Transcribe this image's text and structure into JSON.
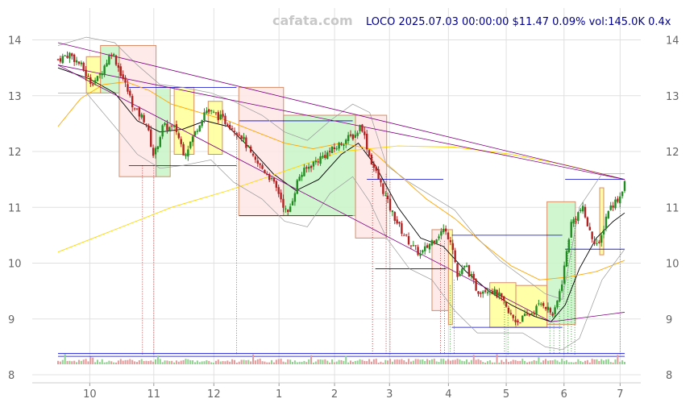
{
  "chart_data": {
    "type": "candlestick",
    "title": "LOCO 2025.07.03 00:00:00 $11.47 0.09% vol:145.0K 0.4x",
    "watermark": "cafata.com",
    "ylim": [
      8,
      14.6
    ],
    "xlim": [
      0,
      100
    ],
    "y_ticks": [
      8,
      9,
      10,
      11,
      12,
      13,
      14
    ],
    "x_ticks": [
      {
        "label": "10",
        "x": 5.6
      },
      {
        "label": "11",
        "x": 16.9
      },
      {
        "label": "12",
        "x": 27.5
      },
      {
        "label": "1",
        "x": 39.0
      },
      {
        "label": "2",
        "x": 48.8
      },
      {
        "label": "3",
        "x": 58.5
      },
      {
        "label": "4",
        "x": 68.9
      },
      {
        "label": "5",
        "x": 79.1
      },
      {
        "label": "6",
        "x": 89.3
      },
      {
        "label": "7",
        "x": 99.2
      }
    ],
    "grid": true,
    "price_path": [
      [
        0,
        13.65
      ],
      [
        2,
        13.75
      ],
      [
        4,
        13.55
      ],
      [
        5.6,
        13.25
      ],
      [
        7,
        13.3
      ],
      [
        9.5,
        13.8
      ],
      [
        11.5,
        13.3
      ],
      [
        13.5,
        12.75
      ],
      [
        15.5,
        12.55
      ],
      [
        16.9,
        11.9
      ],
      [
        18.5,
        12.45
      ],
      [
        20.8,
        12.4
      ],
      [
        22.3,
        11.95
      ],
      [
        24,
        12.3
      ],
      [
        26,
        12.75
      ],
      [
        28,
        12.65
      ],
      [
        30,
        12.5
      ],
      [
        32.3,
        12.3
      ],
      [
        34.5,
        11.85
      ],
      [
        37,
        11.6
      ],
      [
        39,
        11.25
      ],
      [
        40.5,
        10.85
      ],
      [
        42.5,
        11.55
      ],
      [
        44.5,
        11.75
      ],
      [
        46.5,
        11.9
      ],
      [
        48.8,
        12.05
      ],
      [
        50.5,
        12.2
      ],
      [
        52.5,
        12.3
      ],
      [
        53.5,
        12.5
      ],
      [
        55,
        11.9
      ],
      [
        57,
        11.4
      ],
      [
        58.5,
        11.0
      ],
      [
        60.5,
        10.6
      ],
      [
        62.5,
        10.3
      ],
      [
        64,
        10.15
      ],
      [
        66,
        10.4
      ],
      [
        68,
        10.6
      ],
      [
        69.5,
        10.4
      ],
      [
        70.5,
        9.75
      ],
      [
        72,
        9.95
      ],
      [
        74,
        9.5
      ],
      [
        76,
        9.55
      ],
      [
        78,
        9.4
      ],
      [
        79.5,
        9.1
      ],
      [
        81,
        8.95
      ],
      [
        83.5,
        9.1
      ],
      [
        85.5,
        9.3
      ],
      [
        87.5,
        9.05
      ],
      [
        89,
        9.7
      ],
      [
        90.5,
        10.7
      ],
      [
        92.5,
        11.0
      ],
      [
        94,
        10.5
      ],
      [
        95.5,
        10.3
      ],
      [
        97,
        10.95
      ],
      [
        99.2,
        11.2
      ],
      [
        100,
        11.47
      ]
    ],
    "series": [
      {
        "kind": "sma_short",
        "color": "#000000",
        "points": [
          [
            0,
            13.5
          ],
          [
            5.6,
            13.3
          ],
          [
            10,
            13.05
          ],
          [
            14,
            12.55
          ],
          [
            18,
            12.35
          ],
          [
            22,
            12.4
          ],
          [
            26,
            12.55
          ],
          [
            30,
            12.45
          ],
          [
            34,
            12.05
          ],
          [
            38,
            11.6
          ],
          [
            42,
            11.3
          ],
          [
            46,
            11.5
          ],
          [
            50,
            11.95
          ],
          [
            53,
            12.15
          ],
          [
            56,
            11.75
          ],
          [
            60,
            11.0
          ],
          [
            64,
            10.45
          ],
          [
            68,
            10.3
          ],
          [
            72,
            9.85
          ],
          [
            76,
            9.5
          ],
          [
            80,
            9.25
          ],
          [
            84,
            9.05
          ],
          [
            87,
            8.95
          ],
          [
            89.5,
            9.25
          ],
          [
            92,
            9.9
          ],
          [
            95,
            10.45
          ],
          [
            98,
            10.75
          ],
          [
            100,
            10.9
          ]
        ]
      },
      {
        "kind": "sma_mid",
        "color": "#ffa500",
        "points": [
          [
            0,
            12.45
          ],
          [
            4,
            12.95
          ],
          [
            8,
            13.2
          ],
          [
            12,
            13.25
          ],
          [
            16,
            13.1
          ],
          [
            20,
            12.85
          ],
          [
            25,
            12.7
          ],
          [
            30,
            12.55
          ],
          [
            35,
            12.35
          ],
          [
            40,
            12.15
          ],
          [
            45,
            12.05
          ],
          [
            50,
            12.15
          ],
          [
            55,
            12.05
          ],
          [
            60,
            11.6
          ],
          [
            65,
            11.15
          ],
          [
            70,
            10.8
          ],
          [
            75,
            10.35
          ],
          [
            80,
            9.95
          ],
          [
            85,
            9.7
          ],
          [
            90,
            9.75
          ],
          [
            95,
            9.85
          ],
          [
            100,
            10.05
          ]
        ]
      },
      {
        "kind": "sma_long",
        "color": "#ffd700",
        "points": [
          [
            0,
            10.2
          ],
          [
            10,
            10.6
          ],
          [
            20,
            11.0
          ],
          [
            30,
            11.3
          ],
          [
            40,
            11.65
          ],
          [
            50,
            12.0
          ],
          [
            60,
            12.1
          ],
          [
            70,
            12.08
          ],
          [
            80,
            11.95
          ],
          [
            90,
            11.75
          ],
          [
            100,
            11.5
          ]
        ]
      },
      {
        "kind": "bb_upper",
        "color": "#999999",
        "points": [
          [
            0,
            13.9
          ],
          [
            5,
            14.05
          ],
          [
            10,
            13.95
          ],
          [
            14,
            13.55
          ],
          [
            18,
            13.2
          ],
          [
            22,
            13.15
          ],
          [
            27,
            13.05
          ],
          [
            31,
            12.9
          ],
          [
            36,
            12.65
          ],
          [
            40,
            12.35
          ],
          [
            44,
            12.2
          ],
          [
            48,
            12.55
          ],
          [
            52,
            12.85
          ],
          [
            55,
            12.7
          ],
          [
            58,
            11.75
          ],
          [
            62,
            11.45
          ],
          [
            66,
            11.2
          ],
          [
            70,
            10.95
          ],
          [
            74,
            10.45
          ],
          [
            78,
            10.05
          ],
          [
            82,
            9.75
          ],
          [
            86,
            9.45
          ],
          [
            89,
            9.35
          ],
          [
            92,
            11.0
          ],
          [
            96,
            11.6
          ],
          [
            100,
            11.6
          ]
        ]
      },
      {
        "kind": "bb_lower",
        "color": "#999999",
        "points": [
          [
            0,
            13.05
          ],
          [
            5,
            13.05
          ],
          [
            10,
            12.45
          ],
          [
            14,
            11.95
          ],
          [
            18,
            11.7
          ],
          [
            22,
            11.75
          ],
          [
            27,
            11.85
          ],
          [
            31,
            11.45
          ],
          [
            36,
            11.15
          ],
          [
            40,
            10.75
          ],
          [
            44,
            10.65
          ],
          [
            48,
            11.25
          ],
          [
            52,
            11.55
          ],
          [
            55,
            11.1
          ],
          [
            58,
            10.45
          ],
          [
            62,
            9.9
          ],
          [
            66,
            9.7
          ],
          [
            70,
            9.15
          ],
          [
            74,
            8.75
          ],
          [
            78,
            8.75
          ],
          [
            82,
            8.75
          ],
          [
            86,
            8.5
          ],
          [
            89,
            8.45
          ],
          [
            92,
            8.65
          ],
          [
            96,
            9.7
          ],
          [
            100,
            10.25
          ]
        ]
      }
    ],
    "trendlines": [
      {
        "color": "#800080",
        "from": [
          0,
          13.95
        ],
        "to": [
          100,
          11.5
        ]
      },
      {
        "color": "#800080",
        "from": [
          0,
          13.55
        ],
        "to": [
          100,
          11.5
        ]
      },
      {
        "color": "#800080",
        "from": [
          0,
          13.55
        ],
        "to": [
          87,
          8.95
        ]
      },
      {
        "color": "#800080",
        "from": [
          87,
          8.95
        ],
        "to": [
          100,
          9.12
        ]
      }
    ],
    "boxes": [
      {
        "x0": 5.0,
        "x1": 7.5,
        "y0": 13.05,
        "y1": 13.7,
        "kind": "yellow"
      },
      {
        "x0": 7.5,
        "x1": 10.8,
        "y0": 13.05,
        "y1": 13.9,
        "kind": "green"
      },
      {
        "x0": 10.8,
        "x1": 17.3,
        "y0": 11.55,
        "y1": 13.9,
        "kind": "red"
      },
      {
        "x0": 17.3,
        "x1": 19.8,
        "y0": 11.55,
        "y1": 13.15,
        "kind": "green"
      },
      {
        "x0": 20.5,
        "x1": 24.0,
        "y0": 11.95,
        "y1": 13.15,
        "kind": "yellow"
      },
      {
        "x0": 26.5,
        "x1": 29.0,
        "y0": 11.95,
        "y1": 12.9,
        "kind": "yellow"
      },
      {
        "x0": 31.9,
        "x1": 39.8,
        "y0": 10.85,
        "y1": 13.15,
        "kind": "red"
      },
      {
        "x0": 39.8,
        "x1": 52.5,
        "y0": 10.85,
        "y1": 12.65,
        "kind": "green"
      },
      {
        "x0": 52.5,
        "x1": 58.0,
        "y0": 10.45,
        "y1": 12.65,
        "kind": "red"
      },
      {
        "x0": 66.0,
        "x1": 68.9,
        "y0": 9.15,
        "y1": 10.6,
        "kind": "red"
      },
      {
        "x0": 68.9,
        "x1": 69.6,
        "y0": 8.9,
        "y1": 10.6,
        "kind": "yellow"
      },
      {
        "x0": 76.2,
        "x1": 80.8,
        "y0": 8.85,
        "y1": 9.65,
        "kind": "yellow"
      },
      {
        "x0": 80.8,
        "x1": 86.3,
        "y0": 8.85,
        "y1": 9.6,
        "kind": "yellow"
      },
      {
        "x0": 86.3,
        "x1": 91.3,
        "y0": 8.9,
        "y1": 11.1,
        "kind": "green"
      },
      {
        "x0": 95.6,
        "x1": 96.3,
        "y0": 10.15,
        "y1": 11.35,
        "kind": "yellow"
      }
    ],
    "levels": [
      {
        "y": 13.15,
        "x0": 12.5,
        "x1": 31.5
      },
      {
        "y": 11.75,
        "x0": 12.5,
        "x1": 31.5
      },
      {
        "y": 12.55,
        "x0": 32.0,
        "x1": 52.0
      },
      {
        "y": 10.85,
        "x0": 32.0,
        "x1": 52.0
      },
      {
        "y": 11.5,
        "x0": 54.5,
        "x1": 68.0
      },
      {
        "y": 9.9,
        "x0": 56.0,
        "x1": 68.5
      },
      {
        "y": 10.5,
        "x0": 69.5,
        "x1": 89.0
      },
      {
        "y": 8.85,
        "x0": 69.5,
        "x1": 89.0
      },
      {
        "y": 11.5,
        "x0": 89.5,
        "x1": 100.0
      },
      {
        "y": 10.25,
        "x0": 89.5,
        "x1": 100.0
      },
      {
        "y": 8.38,
        "x0": 0,
        "x1": 100.0
      },
      {
        "y": 8.33,
        "x0": 0,
        "x1": 100.0
      }
    ],
    "signals": [
      {
        "x": 14.9,
        "y": 11.75,
        "kind": "red"
      },
      {
        "x": 16.9,
        "y": 11.75,
        "kind": "red"
      },
      {
        "x": 31.5,
        "y": 12.35,
        "kind": "green"
      },
      {
        "x": 55.5,
        "y": 11.9,
        "kind": "red"
      },
      {
        "x": 57.9,
        "y": 11.6,
        "kind": "red"
      },
      {
        "x": 58.6,
        "y": 11.5,
        "kind": "red"
      },
      {
        "x": 67.5,
        "y": 10.4,
        "kind": "red"
      },
      {
        "x": 68.2,
        "y": 10.4,
        "kind": "red"
      },
      {
        "x": 69.2,
        "y": 9.6,
        "kind": "green"
      },
      {
        "x": 69.9,
        "y": 9.7,
        "kind": "green"
      },
      {
        "x": 78.8,
        "y": 9.3,
        "kind": "green"
      },
      {
        "x": 79.4,
        "y": 9.2,
        "kind": "green"
      },
      {
        "x": 86.8,
        "y": 9.05,
        "kind": "green"
      },
      {
        "x": 87.5,
        "y": 9.05,
        "kind": "green"
      },
      {
        "x": 88.5,
        "y": 9.4,
        "kind": "green"
      },
      {
        "x": 89.3,
        "y": 9.8,
        "kind": "green"
      },
      {
        "x": 90.0,
        "y": 10.4,
        "kind": "green"
      },
      {
        "x": 90.6,
        "y": 10.6,
        "kind": "green"
      },
      {
        "x": 91.2,
        "y": 10.8,
        "kind": "green"
      },
      {
        "x": 99.2,
        "y": 11.2,
        "kind": "green"
      }
    ]
  }
}
